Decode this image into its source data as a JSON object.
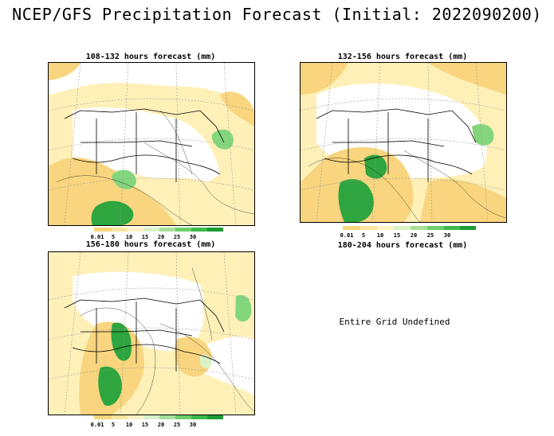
{
  "main_title": "NCEP/GFS Precipitation Forecast (Initial: 2022090200)",
  "panels": [
    {
      "title": "108-132 hours forecast (mm)"
    },
    {
      "title": "132-156 hours forecast (mm)"
    },
    {
      "title": "156-180 hours forecast (mm)"
    },
    {
      "title": "180-204 hours forecast (mm)"
    }
  ],
  "undefined_message": "Entire Grid Undefined",
  "legend": {
    "labels": [
      "0.01",
      "5",
      "10",
      "15",
      "20",
      "25",
      "30"
    ],
    "colors": [
      "#f5d77a",
      "#fbe6a0",
      "#fff3c6",
      "#d8f2c8",
      "#a6e09a",
      "#6ccf6a",
      "#3db84a",
      "#1c9c33"
    ]
  },
  "map_colors": {
    "light": "#fff0b8",
    "medium": "#f8d57e",
    "pale_green": "#d9f2c8",
    "green": "#84d67c",
    "dark_green": "#2ea53e"
  }
}
